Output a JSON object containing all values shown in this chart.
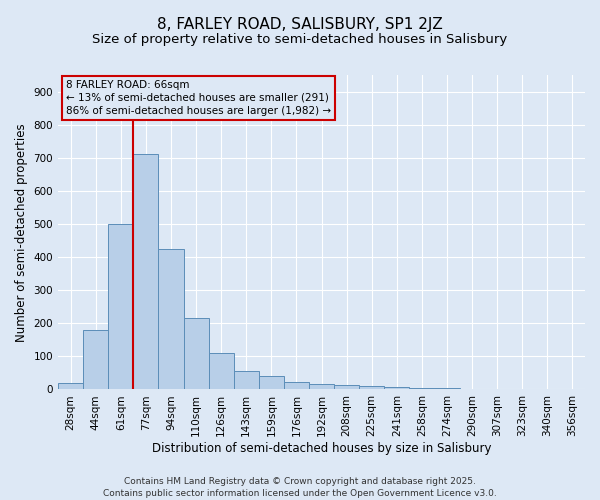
{
  "title": "8, FARLEY ROAD, SALISBURY, SP1 2JZ",
  "subtitle": "Size of property relative to semi-detached houses in Salisbury",
  "xlabel": "Distribution of semi-detached houses by size in Salisbury",
  "ylabel": "Number of semi-detached properties",
  "bar_values": [
    20,
    180,
    500,
    710,
    425,
    215,
    110,
    55,
    40,
    22,
    18,
    13,
    10,
    8,
    5,
    3,
    2,
    1,
    0,
    0,
    0
  ],
  "all_labels": [
    "28sqm",
    "44sqm",
    "61sqm",
    "77sqm",
    "94sqm",
    "110sqm",
    "126sqm",
    "143sqm",
    "159sqm",
    "176sqm",
    "192sqm",
    "208sqm",
    "225sqm",
    "241sqm",
    "258sqm",
    "274sqm",
    "290sqm",
    "307sqm",
    "323sqm",
    "340sqm",
    "356sqm"
  ],
  "bar_color": "#b8cfe8",
  "bar_edge_color": "#5b8db8",
  "vline_color": "#cc0000",
  "vline_x_index": 2.5,
  "ylim": [
    0,
    950
  ],
  "yticks": [
    0,
    100,
    200,
    300,
    400,
    500,
    600,
    700,
    800,
    900
  ],
  "annotation_title": "8 FARLEY ROAD: 66sqm",
  "annotation_line1": "← 13% of semi-detached houses are smaller (291)",
  "annotation_line2": "86% of semi-detached houses are larger (1,982) →",
  "annotation_box_color": "#cc0000",
  "footer_line1": "Contains HM Land Registry data © Crown copyright and database right 2025.",
  "footer_line2": "Contains public sector information licensed under the Open Government Licence v3.0.",
  "background_color": "#dde8f5",
  "grid_color": "#ffffff",
  "title_fontsize": 11,
  "subtitle_fontsize": 9.5,
  "axis_label_fontsize": 8.5,
  "tick_fontsize": 7.5,
  "annotation_fontsize": 7.5,
  "footer_fontsize": 6.5
}
